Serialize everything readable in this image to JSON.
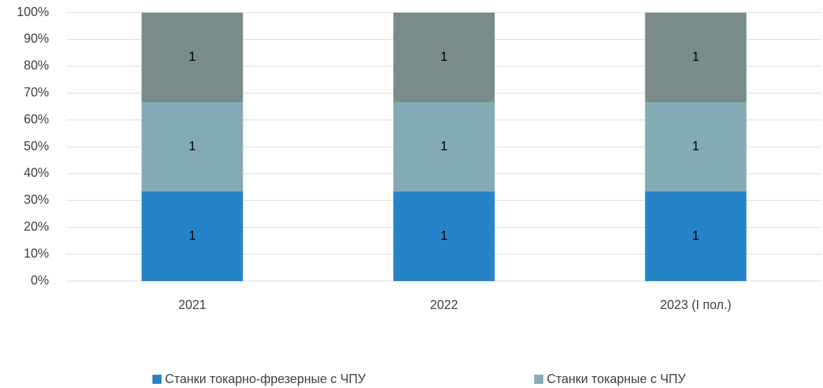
{
  "chart_data": {
    "type": "bar",
    "stacking": "percent",
    "categories": [
      "2021",
      "2022",
      "2023 (I пол.)"
    ],
    "series": [
      {
        "name": "Станки токарно-фрезерные с ЧПУ",
        "color": "#2783c8",
        "values": [
          1,
          1,
          1
        ]
      },
      {
        "name": "Станки токарные с ЧПУ",
        "color": "#83abb6",
        "values": [
          1,
          1,
          1
        ]
      },
      {
        "color": "#7a8b8c",
        "values": [
          1,
          1,
          1
        ]
      }
    ],
    "ylim": [
      0,
      100
    ],
    "yticks": [
      {
        "value": 0,
        "label": "0%"
      },
      {
        "value": 10,
        "label": "10%"
      },
      {
        "value": 20,
        "label": "20%"
      },
      {
        "value": 30,
        "label": "30%"
      },
      {
        "value": 40,
        "label": "40%"
      },
      {
        "value": 50,
        "label": "50%"
      },
      {
        "value": 60,
        "label": "60%"
      },
      {
        "value": 70,
        "label": "70%"
      },
      {
        "value": 80,
        "label": "80%"
      },
      {
        "value": 90,
        "label": "90%"
      },
      {
        "value": 100,
        "label": "100%"
      }
    ],
    "grid": true,
    "legend": "bottom"
  }
}
